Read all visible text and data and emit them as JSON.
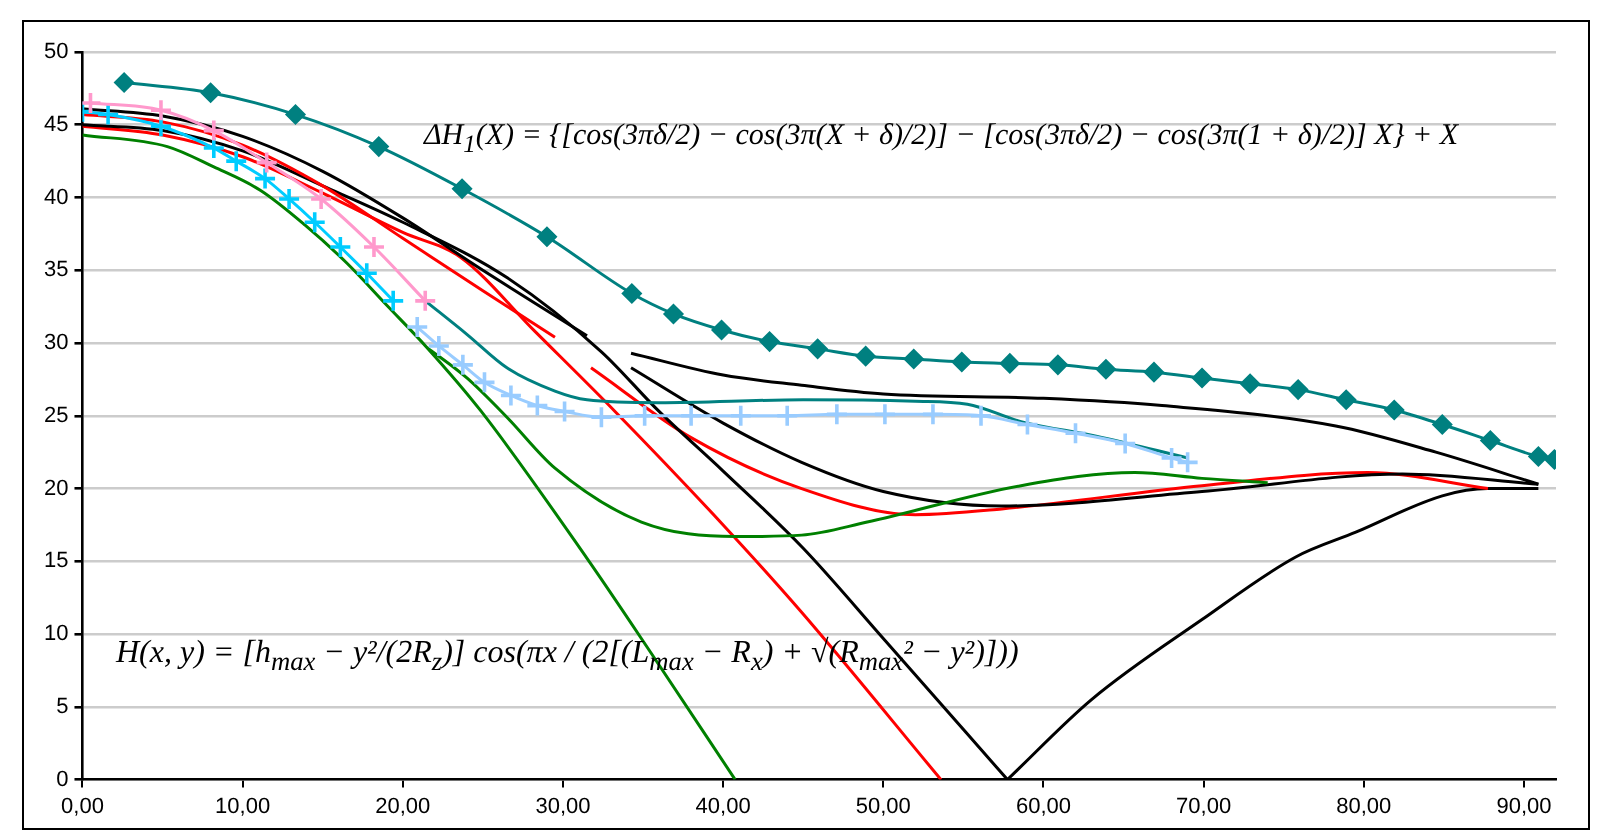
{
  "chart_data": {
    "type": "line",
    "xlim": [
      0,
      92
    ],
    "xticks": [
      {
        "value": 0,
        "label": "0,00"
      },
      {
        "value": 10,
        "label": "10,00"
      },
      {
        "value": 20,
        "label": "20,00"
      },
      {
        "value": 30,
        "label": "30,00"
      },
      {
        "value": 40,
        "label": "40,00"
      },
      {
        "value": 50,
        "label": "50,00"
      },
      {
        "value": 60,
        "label": "60,00"
      },
      {
        "value": 70,
        "label": "70,00"
      },
      {
        "value": 80,
        "label": "80,00"
      },
      {
        "value": 90,
        "label": "90,00"
      }
    ],
    "ylim": [
      0,
      50
    ],
    "yticks": [
      0,
      5,
      10,
      15,
      20,
      25,
      30,
      35,
      40,
      45,
      50
    ],
    "grid": "y",
    "legend": false,
    "marker": "none",
    "annotations": [
      "ΔH$_{1}$(X) = {[cos(3πδ/2) − cos(3π(X + δ)/2)] − [cos(3πδ/2) − cos(3π(1 + δ)/2)] X} + X",
      "H(x, y) = [h$_{max}$ − y²/(2R$_{z}$)] cos(πx / (2[(L$_{max}$ − R$_{x}$) + √(R$_{max}$² − y²)]))"
    ],
    "series": [
      {
        "color": "#008080",
        "marker": "diamond",
        "x": [
          2.6,
          8,
          13.3,
          18.5,
          23.7,
          29,
          34.3,
          36.9,
          39.9,
          42.9,
          45.9,
          48.9,
          51.9,
          54.9,
          57.9,
          60.9,
          63.9,
          66.9,
          69.9,
          72.9,
          75.9,
          78.9,
          81.9,
          84.9,
          87.9,
          90.9,
          91.9
        ],
        "values": [
          47.9,
          47.2,
          45.7,
          43.5,
          40.6,
          37.3,
          33.4,
          32,
          30.9,
          30.1,
          29.6,
          29.1,
          28.9,
          28.7,
          28.6,
          28.5,
          28.2,
          28,
          27.6,
          27.2,
          26.8,
          26.1,
          25.4,
          24.4,
          23.3,
          22.2,
          22
        ]
      },
      {
        "color": "#ff99cc",
        "marker": "cross",
        "x": [
          0.5,
          4.9,
          8.2,
          11.5,
          14.9,
          18.2,
          21.4
        ],
        "values": [
          46.5,
          46,
          44.6,
          42.4,
          39.9,
          36.6,
          32.9
        ]
      },
      {
        "color": "#00ccff",
        "marker": "cross",
        "x": [
          0,
          1.6,
          4.9,
          8.2,
          9.6,
          11.4,
          12.9,
          14.5,
          16.1,
          17.75,
          19.4
        ],
        "values": [
          45.9,
          45.7,
          44.9,
          43.4,
          42.5,
          41.3,
          39.9,
          38.3,
          36.6,
          34.8,
          32.9
        ]
      },
      {
        "color": "#99ccff",
        "marker": "cross",
        "x": [
          20.9,
          22.25,
          23.75,
          25.1,
          26.75,
          28.4,
          30.1,
          32.4,
          35.1,
          38,
          41.1,
          44,
          47.1,
          50.1,
          53.1,
          56.1,
          59,
          62,
          65.1,
          68,
          69
        ],
        "values": [
          31.1,
          29.8,
          28.5,
          27.3,
          26.4,
          25.7,
          25.3,
          24.9,
          25,
          25,
          25,
          25,
          25.1,
          25.1,
          25.1,
          25,
          24.4,
          23.8,
          23.1,
          22.1,
          21.8
        ]
      },
      {
        "color": "#008080",
        "x": [
          21.4,
          24,
          26.5,
          29.5,
          31.5,
          36,
          45,
          52,
          55.25,
          58.6,
          63.3,
          69
        ],
        "values": [
          32.9,
          30.6,
          28.3,
          26.7,
          26.1,
          25.9,
          26.1,
          26,
          25.8,
          24.6,
          23.6,
          22.1
        ]
      },
      {
        "color": "#008000",
        "x": [
          0,
          5.3,
          8.2,
          11.1,
          13.9,
          16.5,
          19,
          21.5,
          24.9,
          31.5,
          35.5,
          40.75
        ],
        "values": [
          44.3,
          43.5,
          42.1,
          40.5,
          38.1,
          35.5,
          32.6,
          29.7,
          25.3,
          15.2,
          8.7,
          0
        ]
      },
      {
        "color": "#008000",
        "x": [
          21.5,
          24,
          26.5,
          29.5,
          34.9,
          40.75,
          44.9,
          49,
          58.6,
          65.7,
          69.9,
          74
        ],
        "values": [
          29.7,
          27.6,
          24.9,
          21.4,
          17.7,
          16.7,
          16.8,
          17.7,
          20.2,
          21.1,
          20.7,
          20.4
        ]
      },
      {
        "color": "#000000",
        "x": [
          0,
          5,
          10,
          15,
          20,
          25,
          31.5
        ],
        "values": [
          46.1,
          45.6,
          44.2,
          41.8,
          38.6,
          35,
          30.5
        ]
      },
      {
        "color": "#ff0000",
        "x": [
          0,
          5,
          10,
          15,
          20,
          25,
          29.5
        ],
        "values": [
          45.7,
          45.2,
          43.6,
          40.8,
          37.2,
          33.6,
          30.4
        ]
      },
      {
        "color": "#000000",
        "x": [
          0,
          5,
          10,
          15,
          20,
          26.5,
          32.4,
          36,
          40,
          45,
          50,
          57.75
        ],
        "values": [
          45,
          44.6,
          43.2,
          40.8,
          38.3,
          34.5,
          29.4,
          25.3,
          21.2,
          15.9,
          9.7,
          0
        ]
      },
      {
        "color": "#ff0000",
        "x": [
          0,
          5,
          10,
          15,
          20,
          23.6,
          28.25,
          33.25,
          40,
          44.9,
          53.6
        ],
        "values": [
          44.9,
          44.3,
          42.8,
          40.3,
          37.6,
          35.9,
          30.8,
          25.3,
          17.5,
          11.5,
          0
        ]
      },
      {
        "color": "#000000",
        "x": [
          34.25,
          40,
          44.9,
          50,
          60,
          67.4,
          78.25,
          84.5,
          90.9
        ],
        "values": [
          29.3,
          27.8,
          27.1,
          26.5,
          26.2,
          25.7,
          24.3,
          22.5,
          20.3
        ]
      },
      {
        "color": "#000000",
        "x": [
          34.25,
          40,
          44.9,
          50,
          57.4,
          69.9,
          82.4,
          90.9
        ],
        "values": [
          28.3,
          24.5,
          21.8,
          19.8,
          18.8,
          19.8,
          21,
          20.3
        ]
      },
      {
        "color": "#ff0000",
        "x": [
          31.75,
          38,
          44.9,
          52,
          57.4,
          69.9,
          80.25,
          87.75
        ],
        "values": [
          28.3,
          23.5,
          20,
          18.2,
          18.6,
          20.2,
          21.1,
          20
        ]
      },
      {
        "color": "#000000",
        "x": [
          57.75,
          63,
          69.9,
          75.75,
          79.5,
          84.9,
          87.75,
          90.9
        ],
        "values": [
          0,
          5.5,
          11,
          15.3,
          17,
          19.5,
          20,
          20
        ]
      }
    ]
  }
}
